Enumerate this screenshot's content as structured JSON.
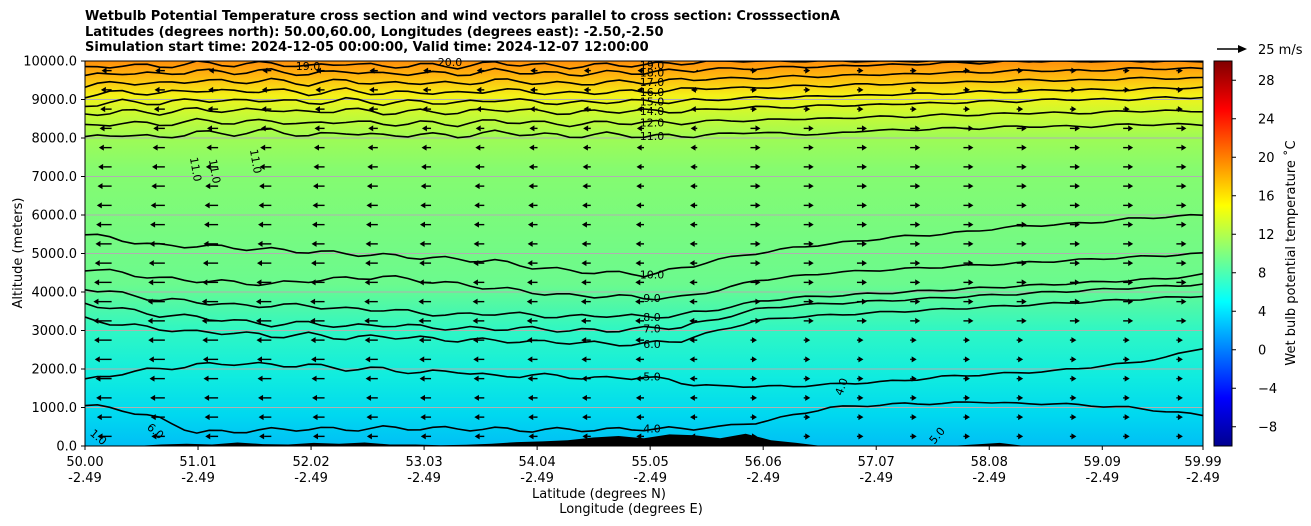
{
  "title_lines": [
    "Wetbulb Potential Temperature cross section and wind vectors parallel to cross section: CrosssectionA",
    "Latitudes (degrees north): 50.00,60.00, Longitudes (degrees east): -2.50,-2.50",
    "Simulation start time: 2024-12-05 00:00:00, Valid time: 2024-12-07 12:00:00"
  ],
  "chart_data": {
    "type": "heatmap",
    "title": "Wetbulb Potential Temperature cross section and wind vectors parallel to cross section: CrosssectionA",
    "ylabel": "Altitude (meters)",
    "xlabel_lines": [
      "Latitude (degrees N)",
      "Longitude (degrees E)"
    ],
    "ylim": [
      0,
      10000
    ],
    "xlim": [
      50.0,
      59.99
    ],
    "y_ticks": [
      "0.0",
      "1000.0",
      "2000.0",
      "3000.0",
      "4000.0",
      "5000.0",
      "6000.0",
      "7000.0",
      "8000.0",
      "9000.0",
      "10000.0"
    ],
    "x_ticks": [
      {
        "lat": "50.00",
        "lon": "-2.49"
      },
      {
        "lat": "51.01",
        "lon": "-2.49"
      },
      {
        "lat": "52.02",
        "lon": "-2.49"
      },
      {
        "lat": "53.03",
        "lon": "-2.49"
      },
      {
        "lat": "54.04",
        "lon": "-2.49"
      },
      {
        "lat": "55.05",
        "lon": "-2.49"
      },
      {
        "lat": "56.06",
        "lon": "-2.49"
      },
      {
        "lat": "57.07",
        "lon": "-2.49"
      },
      {
        "lat": "58.08",
        "lon": "-2.49"
      },
      {
        "lat": "59.09",
        "lon": "-2.49"
      },
      {
        "lat": "59.99",
        "lon": "-2.49"
      }
    ],
    "grid": "horizontal",
    "colorbar": {
      "label": "Wet bulb potential temperature ˚C",
      "range": [
        -10,
        30
      ],
      "ticks": [
        "−8",
        "−4",
        "0",
        "4",
        "8",
        "12",
        "16",
        "20",
        "24",
        "28"
      ],
      "colormap": "jet"
    },
    "vector_key": "25 m/s",
    "contours": [
      {
        "value": 4.0,
        "label": "4.0",
        "heights": [
          1050,
          950,
          700,
          350,
          380,
          420,
          450,
          430,
          470,
          460,
          450,
          440,
          410,
          430,
          420,
          450,
          440,
          500,
          600,
          800,
          1000,
          1050,
          1100,
          1100,
          1150,
          1100,
          1100,
          1050,
          1000,
          900,
          800
        ]
      },
      {
        "value": 5.0,
        "label": "5.0",
        "heights": [
          1700,
          1900,
          2000,
          2100,
          2150,
          2100,
          2100,
          2000,
          2000,
          1900,
          1950,
          1800,
          1850,
          1800,
          1750,
          1800,
          1650,
          1550,
          1550,
          1550,
          1600,
          1650,
          1700,
          1800,
          1850,
          1900,
          1950,
          2050,
          2150,
          2300,
          2550
        ]
      },
      {
        "value": 6.0,
        "label": "6.0",
        "heights": [
          3300,
          3150,
          3050,
          2950,
          2950,
          2850,
          2900,
          2800,
          2850,
          2800,
          2750,
          2750,
          2700,
          2700,
          2650,
          2650,
          2750,
          3000,
          3250,
          3350,
          3400,
          3450,
          3500,
          3550,
          3600,
          3650,
          3700,
          3750,
          3800,
          3850,
          3900
        ]
      },
      {
        "value": 7.0,
        "label": "7.0",
        "heights": [
          3700,
          3550,
          3400,
          3350,
          3250,
          3150,
          3200,
          3100,
          3150,
          3100,
          3050,
          3050,
          3050,
          3000,
          3000,
          3050,
          3100,
          3300,
          3550,
          3650,
          3700,
          3750,
          3800,
          3850,
          3900,
          3950,
          4000,
          4050,
          4100,
          4150,
          4200
        ]
      },
      {
        "value": 8.0,
        "label": "8.0",
        "heights": [
          4100,
          3950,
          3800,
          3750,
          3650,
          3650,
          3650,
          3550,
          3550,
          3450,
          3400,
          3450,
          3400,
          3350,
          3400,
          3350,
          3400,
          3550,
          3750,
          3850,
          3900,
          3950,
          4000,
          4050,
          4100,
          4150,
          4200,
          4250,
          4300,
          4350,
          4450
        ]
      },
      {
        "value": 9.0,
        "label": "9.0",
        "heights": [
          4600,
          4500,
          4350,
          4300,
          4250,
          4200,
          4300,
          4350,
          4400,
          4300,
          4200,
          4100,
          4000,
          3900,
          3900,
          3850,
          3850,
          4050,
          4300,
          4400,
          4500,
          4550,
          4600,
          4650,
          4700,
          4750,
          4800,
          4850,
          4900,
          4950,
          5000
        ]
      },
      {
        "value": 10.0,
        "label": "10.0",
        "heights": [
          5500,
          5350,
          5200,
          5200,
          5150,
          5100,
          5050,
          5000,
          4950,
          4900,
          4850,
          4800,
          4650,
          4550,
          4500,
          4450,
          4600,
          4850,
          5000,
          5150,
          5250,
          5350,
          5450,
          5500,
          5600,
          5700,
          5750,
          5800,
          5900,
          5950,
          6000
        ]
      },
      {
        "value": 11.0,
        "label": "11.0",
        "heights": [
          8000,
          8100,
          8000,
          8150,
          8100,
          8200,
          8050,
          8150,
          8050,
          8100,
          8050,
          8150,
          8100,
          8050,
          8100,
          8050,
          8050,
          8100,
          8150,
          8100,
          8100,
          8200,
          8200,
          8250,
          8250,
          8300,
          8300,
          8300,
          8350,
          8350,
          8350
        ]
      },
      {
        "value": 12.0,
        "label": "12.0",
        "heights": [
          8300,
          8400,
          8350,
          8450,
          8400,
          8450,
          8350,
          8450,
          8350,
          8400,
          8350,
          8450,
          8400,
          8350,
          8400,
          8400,
          8400,
          8450,
          8450,
          8500,
          8500,
          8550,
          8550,
          8600,
          8600,
          8650,
          8650,
          8650,
          8700,
          8700,
          8700
        ]
      },
      {
        "value": 14.0,
        "label": "14.0",
        "heights": [
          8600,
          8700,
          8650,
          8750,
          8700,
          8750,
          8650,
          8750,
          8650,
          8700,
          8650,
          8750,
          8700,
          8650,
          8700,
          8700,
          8700,
          8750,
          8800,
          8800,
          8850,
          8850,
          8900,
          8900,
          8950,
          8950,
          9000,
          9000,
          9000,
          9050,
          9050
        ]
      },
      {
        "value": 15.0,
        "label": "15.0",
        "heights": [
          8850,
          8950,
          8900,
          9000,
          8950,
          9000,
          8900,
          9000,
          8900,
          8950,
          8900,
          9000,
          8950,
          8900,
          8950,
          8950,
          8950,
          9000,
          9050,
          9050,
          9100,
          9100,
          9150,
          9150,
          9200,
          9200,
          9250,
          9250,
          9250,
          9300,
          9300
        ]
      },
      {
        "value": 16.0,
        "label": "16.0",
        "heights": [
          9100,
          9200,
          9150,
          9250,
          9200,
          9250,
          9150,
          9250,
          9150,
          9200,
          9150,
          9250,
          9200,
          9150,
          9200,
          9200,
          9250,
          9300,
          9300,
          9350,
          9350,
          9400,
          9400,
          9450,
          9450,
          9500,
          9500,
          9500,
          9550,
          9550,
          9550
        ]
      },
      {
        "value": 17.0,
        "label": "17.0",
        "heights": [
          9350,
          9450,
          9400,
          9500,
          9450,
          9500,
          9400,
          9500,
          9400,
          9450,
          9400,
          9500,
          9450,
          9400,
          9450,
          9450,
          9500,
          9550,
          9550,
          9600,
          9600,
          9650,
          9650,
          9700,
          9700,
          9750,
          9750,
          9750,
          9800,
          9800,
          9800
        ]
      },
      {
        "value": 18.0,
        "label": "18.0",
        "heights": [
          9600,
          9700,
          9650,
          9750,
          9700,
          9750,
          9650,
          9750,
          9650,
          9700,
          9650,
          9750,
          9700,
          9650,
          9700,
          9700,
          9750,
          9800,
          9800,
          9850,
          9850,
          9900,
          9900,
          9950,
          9950,
          10000,
          10000,
          10000,
          10000,
          10000,
          10000
        ]
      },
      {
        "value": 19.0,
        "label": "19.0",
        "heights": [
          9800,
          9900,
          9850,
          9950,
          9900,
          9950,
          9850,
          9950,
          9850,
          9900,
          9850,
          9950,
          9900,
          9850,
          9900,
          9900,
          9950,
          10000,
          10000,
          10000,
          10000,
          10000,
          10000,
          10000,
          10000,
          10000,
          10000,
          10000,
          10000,
          10000,
          10000
        ]
      }
    ],
    "extra_labels": [
      "11.0",
      "11.0",
      "11.0",
      "1.0",
      "6.0",
      "4.0",
      "5.0",
      "20.0",
      "19.0"
    ],
    "terrain_heights": [
      0,
      0,
      0,
      40,
      60,
      40,
      90,
      50,
      40,
      80,
      60,
      90,
      40,
      40,
      20,
      30,
      60,
      100,
      120,
      150,
      220,
      260,
      200,
      300,
      280,
      200,
      320,
      150,
      80,
      0,
      0,
      0,
      0,
      0,
      0,
      40,
      80,
      0,
      0,
      0,
      0,
      0,
      0,
      0,
      0
    ]
  }
}
